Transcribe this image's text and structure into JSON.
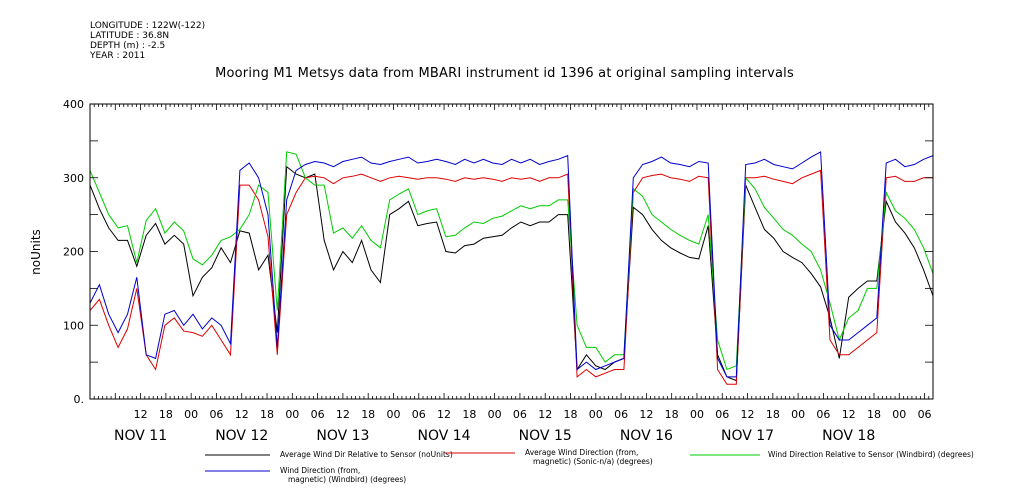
{
  "header": {
    "meta_lines": [
      "LONGITUDE : 122W(-122)",
      "LATITUDE : 36.8N",
      "DEPTH (m) : -2.5",
      "YEAR : 2011"
    ],
    "title": "Mooring M1 Metsys data from MBARI instrument id 1396 at original sampling intervals"
  },
  "chart_data": {
    "type": "line",
    "title": "Mooring M1 Metsys data from MBARI instrument id 1396 at original sampling intervals",
    "ylabel": "noUnits",
    "xlabel": "",
    "ylim": [
      0,
      400
    ],
    "xlim_hours": [
      0,
      200
    ],
    "yticks": [
      "400",
      "300",
      "200",
      "100",
      "0."
    ],
    "hour_tick_labels": [
      "12",
      "18",
      "00",
      "06",
      "12",
      "18",
      "00",
      "06",
      "12",
      "18",
      "00",
      "06",
      "12",
      "18",
      "00",
      "06",
      "12",
      "18",
      "00",
      "06",
      "12",
      "18",
      "00",
      "06",
      "12",
      "18",
      "00",
      "06",
      "12",
      "18",
      "00",
      "06"
    ],
    "day_labels": [
      "NOV 11",
      "NOV 12",
      "NOV 13",
      "NOV 14",
      "NOV 15",
      "NOV 16",
      "NOV 17",
      "NOV 18"
    ],
    "grid": false,
    "legend_placement": "bottom",
    "series": [
      {
        "name": "Average Wind Dir Relative to Sensor (noUnits)",
        "color": "#000000",
        "values": [
          290,
          258,
          232,
          215,
          215,
          180,
          222,
          238,
          210,
          222,
          210,
          140,
          165,
          178,
          205,
          185,
          228,
          225,
          175,
          195,
          90,
          315,
          305,
          300,
          305,
          215,
          175,
          200,
          185,
          215,
          175,
          158,
          250,
          258,
          268,
          235,
          238,
          240,
          200,
          198,
          208,
          210,
          218,
          220,
          222,
          232,
          240,
          235,
          240,
          240,
          250,
          250,
          40,
          60,
          45,
          40,
          50,
          55,
          260,
          250,
          230,
          215,
          205,
          198,
          192,
          190,
          235,
          60,
          30,
          25,
          290,
          260,
          230,
          218,
          200,
          192,
          185,
          170,
          152,
          110,
          55,
          138,
          150,
          160,
          160,
          268,
          240,
          225,
          205,
          175,
          140
        ]
      },
      {
        "name": "Average Wind Direction (from, magnetic) (Sonic-n/a) (degrees)",
        "color": "#dd0000",
        "values": [
          120,
          135,
          100,
          70,
          95,
          150,
          60,
          40,
          100,
          110,
          92,
          90,
          85,
          100,
          80,
          60,
          290,
          290,
          270,
          220,
          60,
          250,
          280,
          300,
          302,
          300,
          292,
          300,
          302,
          305,
          300,
          295,
          300,
          302,
          300,
          298,
          300,
          300,
          298,
          295,
          300,
          298,
          300,
          298,
          295,
          300,
          298,
          300,
          295,
          300,
          300,
          305,
          30,
          40,
          30,
          35,
          40,
          40,
          280,
          300,
          303,
          305,
          300,
          298,
          295,
          302,
          300,
          40,
          20,
          20,
          300,
          300,
          302,
          298,
          295,
          292,
          300,
          305,
          310,
          80,
          60,
          60,
          70,
          80,
          90,
          300,
          302,
          295,
          295,
          300,
          300
        ]
      },
      {
        "name": "Wind Direction Relative to Sensor (Windbird) (degrees)",
        "color": "#00cc00",
        "values": [
          310,
          280,
          250,
          232,
          235,
          185,
          242,
          258,
          225,
          240,
          228,
          190,
          182,
          195,
          215,
          220,
          230,
          250,
          290,
          280,
          120,
          335,
          332,
          300,
          290,
          290,
          225,
          232,
          218,
          235,
          215,
          205,
          270,
          278,
          285,
          250,
          255,
          258,
          220,
          222,
          232,
          240,
          238,
          245,
          248,
          255,
          262,
          258,
          262,
          262,
          270,
          270,
          100,
          70,
          70,
          50,
          60,
          60,
          285,
          275,
          250,
          240,
          230,
          222,
          215,
          210,
          250,
          80,
          40,
          45,
          300,
          285,
          260,
          245,
          230,
          222,
          210,
          200,
          175,
          130,
          80,
          110,
          120,
          150,
          150,
          280,
          255,
          245,
          230,
          205,
          170
        ]
      },
      {
        "name": "Wind Direction (from, magnetic) (Windbird) (degrees)",
        "color": "#0000cc",
        "values": [
          130,
          155,
          115,
          90,
          115,
          165,
          60,
          55,
          115,
          120,
          100,
          115,
          95,
          110,
          100,
          75,
          310,
          320,
          300,
          250,
          70,
          270,
          310,
          318,
          322,
          320,
          315,
          322,
          325,
          328,
          320,
          318,
          322,
          325,
          328,
          320,
          322,
          325,
          322,
          318,
          325,
          320,
          325,
          320,
          318,
          325,
          320,
          325,
          318,
          322,
          325,
          330,
          40,
          50,
          40,
          45,
          50,
          55,
          300,
          318,
          322,
          328,
          320,
          318,
          315,
          322,
          320,
          55,
          30,
          30,
          318,
          320,
          325,
          318,
          315,
          312,
          320,
          328,
          335,
          100,
          80,
          80,
          90,
          100,
          110,
          320,
          325,
          315,
          318,
          325,
          330
        ]
      }
    ]
  }
}
